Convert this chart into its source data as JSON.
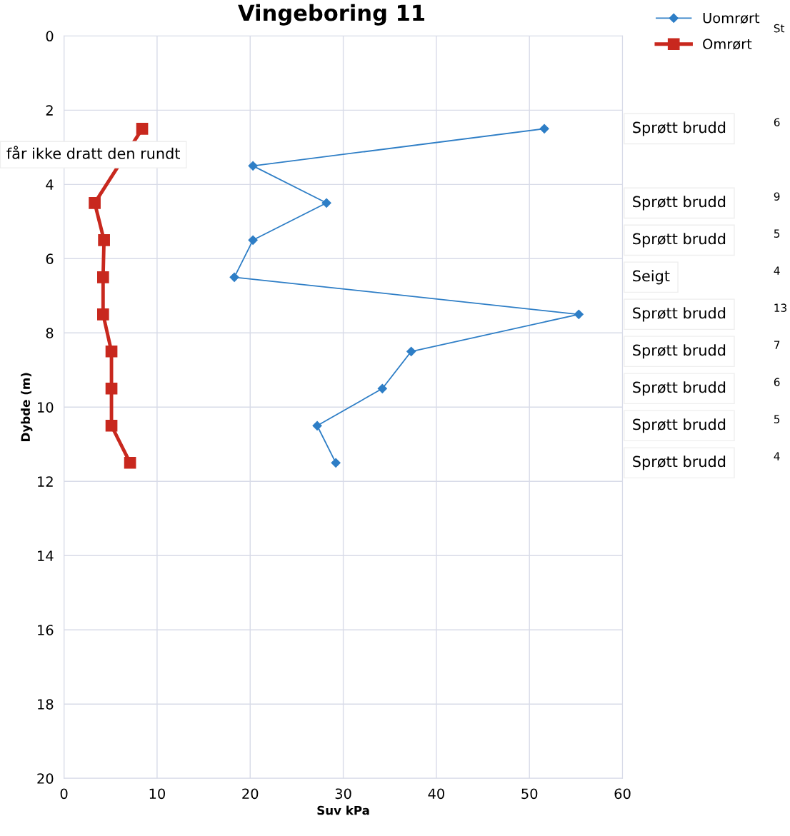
{
  "chart_data": {
    "type": "line",
    "title": "Vingeboring 11",
    "xlabel": "Suv kPa",
    "ylabel": "Dybde (m)",
    "xlim": [
      0,
      60
    ],
    "xticks": [
      0,
      10,
      20,
      30,
      40,
      50,
      60
    ],
    "ylim": [
      20,
      0
    ],
    "yticks": [
      0,
      2,
      4,
      6,
      8,
      10,
      12,
      14,
      16,
      18,
      20
    ],
    "grid": true,
    "legend": "top right",
    "series": [
      {
        "name": "Uomrørt",
        "color": "#2e7ec6",
        "marker": "diamond",
        "x": [
          51.6,
          20.3,
          28.2,
          20.3,
          18.3,
          55.3,
          37.3,
          34.2,
          27.2,
          29.2
        ],
        "values": [
          2.5,
          3.5,
          4.5,
          5.5,
          6.5,
          7.5,
          8.5,
          9.5,
          10.5,
          11.5
        ]
      },
      {
        "name": "Omrørt",
        "color": "#c8281e",
        "marker": "square",
        "x": [
          8.4,
          3.3,
          4.3,
          4.2,
          4.2,
          5.1,
          5.1,
          5.1,
          7.1
        ],
        "values": [
          2.5,
          4.5,
          5.5,
          6.5,
          7.5,
          8.5,
          9.5,
          10.5,
          11.5
        ]
      }
    ],
    "annotations": [
      "får ikke dratt den rundt",
      "Sprøtt brudd",
      "Sprøtt brudd",
      "Sprøtt brudd",
      "Seigt",
      "Sprøtt brudd",
      "Sprøtt brudd",
      "Sprøtt brudd",
      "Sprøtt brudd",
      "Sprøtt brudd",
      "6",
      "9",
      "5",
      "4",
      "13",
      "7",
      "6",
      "5",
      "4",
      "St"
    ]
  }
}
